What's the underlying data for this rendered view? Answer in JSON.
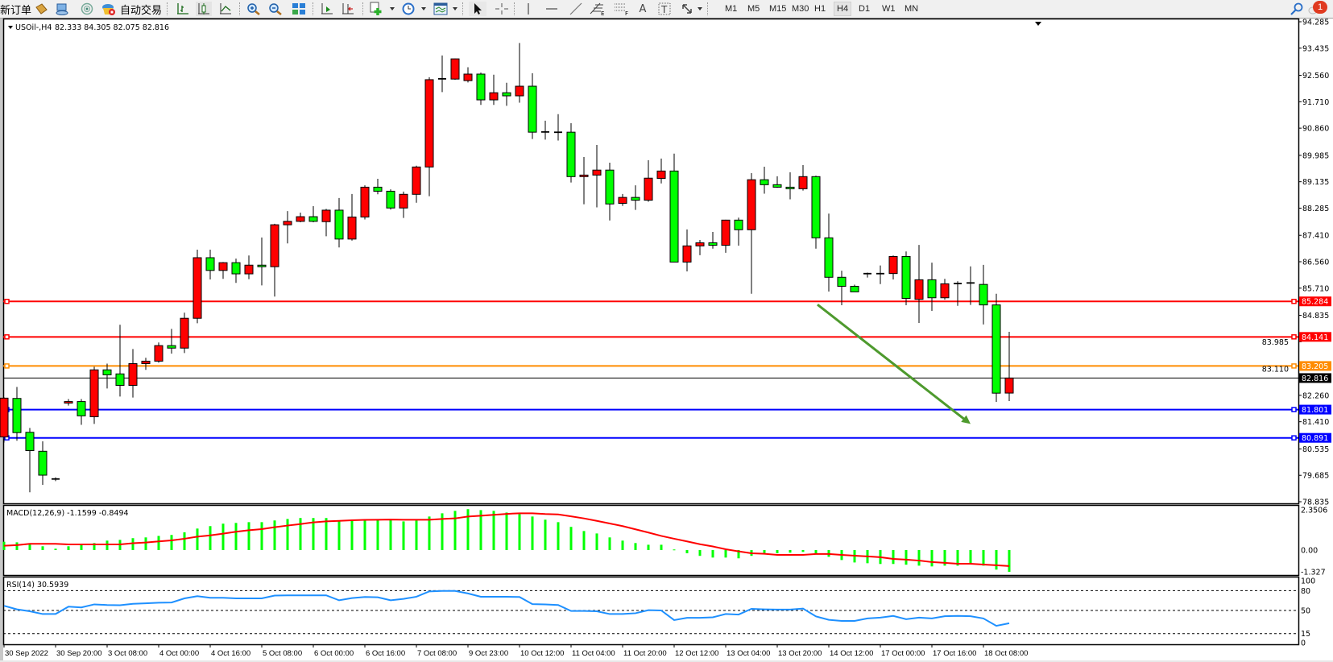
{
  "toolbar": {
    "new_order_label": "新订单",
    "auto_trading_label": "自动交易",
    "timeframes": [
      "M1",
      "M5",
      "M15",
      "M30",
      "H1",
      "H4",
      "D1",
      "W1",
      "MN"
    ],
    "selected_timeframe": "H4",
    "notification_count": "1",
    "icons": [
      "market-watch-icon",
      "navigator-icon",
      "signals-icon",
      "auto-trading-icon",
      "bar-chart-icon",
      "candlestick-icon",
      "line-chart-icon",
      "zoom-in-icon",
      "zoom-out-icon",
      "tile-windows-icon",
      "chart-shift-icon",
      "auto-scroll-icon",
      "new-chart-icon",
      "periods-icon",
      "templates-icon",
      "cursor-icon",
      "crosshair-icon",
      "vertical-line-icon",
      "horizontal-line-icon",
      "trendline-icon",
      "fibonacci-icon",
      "fibo-fan-icon",
      "text-icon",
      "text-label-icon",
      "arrows-icon",
      "search-icon",
      "notification-icon"
    ]
  },
  "chart": {
    "symbol": "USOil-,H4",
    "ohlc_text": "82.333 84.305 82.075 82.816",
    "bull_color": "#ff0000",
    "bear_color": "#00ff00",
    "price_axis": [
      "94.285",
      "93.435",
      "92.560",
      "91.710",
      "90.860",
      "89.985",
      "89.135",
      "88.285",
      "87.410",
      "86.560",
      "85.710",
      "84.835",
      "83.985",
      "83.110",
      "82.260",
      "81.410",
      "80.535",
      "79.685",
      "78.835"
    ],
    "price_range": [
      78.835,
      94.285
    ],
    "current_price": {
      "value": "82.816",
      "color": "#000000"
    },
    "hlines": [
      {
        "value": "85.284",
        "color": "#ff0000"
      },
      {
        "value": "84.141",
        "color": "#ff0000"
      },
      {
        "value": "83.205",
        "color": "#ff8c00"
      },
      {
        "value": "81.801",
        "color": "#0000ff"
      },
      {
        "value": "80.891",
        "color": "#0000ff"
      }
    ],
    "arrow": {
      "color": "#4e9a2e",
      "from": {
        "bar": 63,
        "price": 85.18
      },
      "to": {
        "bar": 75,
        "price": 81.34
      }
    },
    "x_labels": [
      "30 Sep 2022",
      "30 Sep 20:00",
      "3 Oct 08:00",
      "4 Oct 00:00",
      "4 Oct 16:00",
      "5 Oct 08:00",
      "6 Oct 00:00",
      "6 Oct 16:00",
      "7 Oct 08:00",
      "9 Oct 23:00",
      "10 Oct 12:00",
      "11 Oct 04:00",
      "11 Oct 20:00",
      "12 Oct 12:00",
      "13 Oct 04:00",
      "13 Oct 20:00",
      "14 Oct 12:00",
      "17 Oct 00:00",
      "17 Oct 16:00",
      "18 Oct 08:00"
    ],
    "x_label_every_bars": 4
  },
  "chart_data": {
    "type": "candlestick",
    "ohlc_order": [
      "open",
      "high",
      "low",
      "close"
    ],
    "candles": [
      [
        80.92,
        82.2,
        80.74,
        82.17
      ],
      [
        82.16,
        82.53,
        80.8,
        81.06
      ],
      [
        81.07,
        81.21,
        79.14,
        80.48
      ],
      [
        80.46,
        80.78,
        79.38,
        79.69
      ],
      [
        79.55,
        79.62,
        79.5,
        79.57
      ],
      [
        82.01,
        82.14,
        81.93,
        82.06
      ],
      [
        82.06,
        82.14,
        81.31,
        81.6
      ],
      [
        81.57,
        83.18,
        81.34,
        83.08
      ],
      [
        83.08,
        83.28,
        82.48,
        82.92
      ],
      [
        82.95,
        84.53,
        82.22,
        82.58
      ],
      [
        82.58,
        83.75,
        82.19,
        83.28
      ],
      [
        83.28,
        83.47,
        83.08,
        83.36
      ],
      [
        83.36,
        83.96,
        83.31,
        83.86
      ],
      [
        83.86,
        84.4,
        83.6,
        83.78
      ],
      [
        83.78,
        84.92,
        83.62,
        84.74
      ],
      [
        84.74,
        86.95,
        84.58,
        86.69
      ],
      [
        86.69,
        86.95,
        85.99,
        86.28
      ],
      [
        86.28,
        86.55,
        86.01,
        86.53
      ],
      [
        86.53,
        86.66,
        85.88,
        86.17
      ],
      [
        86.17,
        86.76,
        86.0,
        86.45
      ],
      [
        86.45,
        87.34,
        85.8,
        86.4
      ],
      [
        86.4,
        87.78,
        85.44,
        87.75
      ],
      [
        87.75,
        88.19,
        87.15,
        87.86
      ],
      [
        87.86,
        88.14,
        87.83,
        88.01
      ],
      [
        88.01,
        88.35,
        87.83,
        87.86
      ],
      [
        87.85,
        88.26,
        87.38,
        88.22
      ],
      [
        88.22,
        88.61,
        87.02,
        87.29
      ],
      [
        87.29,
        88.74,
        87.24,
        88.0
      ],
      [
        88.0,
        89.02,
        87.92,
        88.96
      ],
      [
        88.96,
        89.23,
        88.73,
        88.83
      ],
      [
        88.83,
        88.89,
        88.24,
        88.29
      ],
      [
        88.29,
        88.82,
        87.97,
        88.73
      ],
      [
        88.73,
        89.65,
        88.46,
        89.61
      ],
      [
        89.61,
        92.5,
        88.67,
        92.42
      ],
      [
        92.42,
        93.2,
        92.02,
        92.45
      ],
      [
        92.44,
        93.1,
        92.42,
        93.09
      ],
      [
        92.39,
        92.82,
        92.33,
        92.6
      ],
      [
        92.6,
        92.65,
        91.61,
        91.77
      ],
      [
        91.77,
        92.58,
        91.61,
        92.0
      ],
      [
        92.0,
        92.32,
        91.58,
        91.9
      ],
      [
        91.9,
        93.6,
        91.68,
        92.21
      ],
      [
        92.21,
        92.63,
        90.51,
        90.73
      ],
      [
        90.73,
        91.1,
        90.49,
        90.74
      ],
      [
        90.73,
        91.31,
        90.46,
        90.7
      ],
      [
        90.73,
        91.02,
        89.11,
        89.3
      ],
      [
        89.3,
        89.93,
        88.41,
        89.35
      ],
      [
        89.35,
        90.32,
        88.31,
        89.51
      ],
      [
        89.51,
        89.75,
        87.89,
        88.42
      ],
      [
        88.44,
        88.74,
        88.36,
        88.63
      ],
      [
        88.63,
        89.02,
        88.23,
        88.54
      ],
      [
        88.54,
        89.83,
        88.49,
        89.25
      ],
      [
        89.24,
        89.88,
        89.08,
        89.48
      ],
      [
        89.48,
        90.04,
        86.55,
        86.55
      ],
      [
        86.55,
        87.6,
        86.25,
        87.07
      ],
      [
        87.07,
        87.26,
        86.77,
        87.17
      ],
      [
        87.17,
        87.52,
        86.98,
        87.09
      ],
      [
        87.09,
        87.91,
        86.85,
        87.9
      ],
      [
        87.9,
        87.98,
        87.08,
        87.59
      ],
      [
        87.59,
        89.41,
        85.53,
        89.2
      ],
      [
        89.2,
        89.62,
        88.75,
        89.04
      ],
      [
        89.04,
        89.31,
        88.94,
        88.96
      ],
      [
        88.96,
        89.44,
        88.57,
        88.91
      ],
      [
        88.91,
        89.67,
        88.85,
        89.3
      ],
      [
        89.3,
        89.33,
        86.98,
        87.33
      ],
      [
        87.33,
        88.11,
        85.6,
        86.06
      ],
      [
        86.06,
        86.27,
        85.16,
        85.77
      ],
      [
        85.77,
        85.82,
        85.59,
        85.59
      ],
      [
        86.18,
        86.21,
        86.05,
        86.17
      ],
      [
        86.18,
        86.44,
        85.84,
        86.17
      ],
      [
        86.18,
        86.76,
        85.99,
        86.73
      ],
      [
        86.73,
        86.89,
        85.16,
        85.38
      ],
      [
        85.35,
        87.1,
        84.59,
        85.98
      ],
      [
        85.98,
        86.53,
        84.98,
        85.4
      ],
      [
        85.4,
        86.01,
        85.34,
        85.85
      ],
      [
        85.85,
        85.93,
        85.14,
        85.86
      ],
      [
        85.86,
        86.41,
        85.17,
        85.88
      ],
      [
        85.83,
        86.46,
        84.54,
        85.17
      ],
      [
        85.17,
        85.53,
        82.05,
        82.33
      ],
      [
        82.333,
        84.305,
        82.075,
        82.816
      ]
    ],
    "macd": {
      "label": "MACD(12,26,9) -1.1599 -0.8494",
      "axis": [
        "2.3506",
        "0.00",
        "-1.327"
      ],
      "range": [
        -1.327,
        2.3506
      ],
      "histogram_color": "#00ff00",
      "signal_color": "#ff0000",
      "histogram": [
        0.44,
        0.41,
        0.3,
        0.2,
        0.07,
        0.2,
        0.3,
        0.37,
        0.5,
        0.54,
        0.63,
        0.67,
        0.75,
        0.8,
        0.94,
        1.14,
        1.27,
        1.4,
        1.44,
        1.48,
        1.48,
        1.57,
        1.65,
        1.7,
        1.7,
        1.7,
        1.57,
        1.57,
        1.61,
        1.61,
        1.61,
        1.52,
        1.57,
        1.78,
        1.95,
        2.08,
        2.17,
        2.12,
        2.08,
        1.99,
        1.91,
        1.78,
        1.61,
        1.48,
        1.23,
        1.01,
        0.88,
        0.67,
        0.5,
        0.37,
        0.28,
        0.28,
        0.03,
        -0.17,
        -0.31,
        -0.4,
        -0.4,
        -0.44,
        -0.31,
        -0.16,
        -0.17,
        -0.14,
        -0.1,
        -0.21,
        -0.36,
        -0.53,
        -0.66,
        -0.7,
        -0.74,
        -0.74,
        -0.78,
        -0.83,
        -0.87,
        -0.83,
        -0.83,
        -0.7,
        -0.83,
        -1.04,
        -1.16
      ],
      "signal": [
        0.23,
        0.26,
        0.33,
        0.33,
        0.33,
        0.3,
        0.3,
        0.3,
        0.3,
        0.3,
        0.36,
        0.4,
        0.46,
        0.51,
        0.6,
        0.71,
        0.78,
        0.87,
        0.97,
        1.05,
        1.11,
        1.21,
        1.3,
        1.38,
        1.47,
        1.52,
        1.55,
        1.58,
        1.6,
        1.61,
        1.62,
        1.61,
        1.61,
        1.61,
        1.65,
        1.68,
        1.78,
        1.82,
        1.87,
        1.92,
        1.95,
        1.95,
        1.91,
        1.89,
        1.79,
        1.68,
        1.55,
        1.41,
        1.27,
        1.1,
        0.93,
        0.75,
        0.6,
        0.46,
        0.31,
        0.19,
        0.04,
        -0.07,
        -0.17,
        -0.2,
        -0.26,
        -0.26,
        -0.26,
        -0.21,
        -0.21,
        -0.26,
        -0.3,
        -0.34,
        -0.38,
        -0.47,
        -0.51,
        -0.56,
        -0.64,
        -0.68,
        -0.73,
        -0.73,
        -0.77,
        -0.81,
        -0.85
      ]
    },
    "rsi": {
      "label": "RSI(14) 30.5939",
      "axis": [
        "100",
        "80",
        "50",
        "15",
        "0"
      ],
      "levels": [
        80,
        50,
        15
      ],
      "range": [
        0,
        100
      ],
      "color": "#1e90ff",
      "values": [
        57.1,
        51.7,
        48.8,
        44.6,
        44.6,
        55.8,
        54.6,
        59.2,
        58.3,
        57.9,
        60,
        60.8,
        61.7,
        62.1,
        68.3,
        71.7,
        69.2,
        69.2,
        68.3,
        68.3,
        68.3,
        72.5,
        72.9,
        72.9,
        72.9,
        72.9,
        65.4,
        68.8,
        70.4,
        70,
        65.4,
        67.5,
        70.8,
        78.8,
        79.6,
        79.6,
        75.8,
        70.8,
        70.8,
        70.8,
        70.4,
        59.6,
        59.2,
        58.3,
        49.2,
        49.2,
        48.8,
        44.6,
        44.6,
        45.8,
        50.4,
        50,
        35.4,
        38.8,
        38.8,
        39.6,
        44.6,
        43.8,
        52.5,
        51.7,
        51.3,
        51.3,
        52.9,
        41,
        35.8,
        34.2,
        34.2,
        37.9,
        39.2,
        41.7,
        36.7,
        39.2,
        37.9,
        41.3,
        41.7,
        41.3,
        37.9,
        26.7,
        30.59
      ]
    }
  }
}
